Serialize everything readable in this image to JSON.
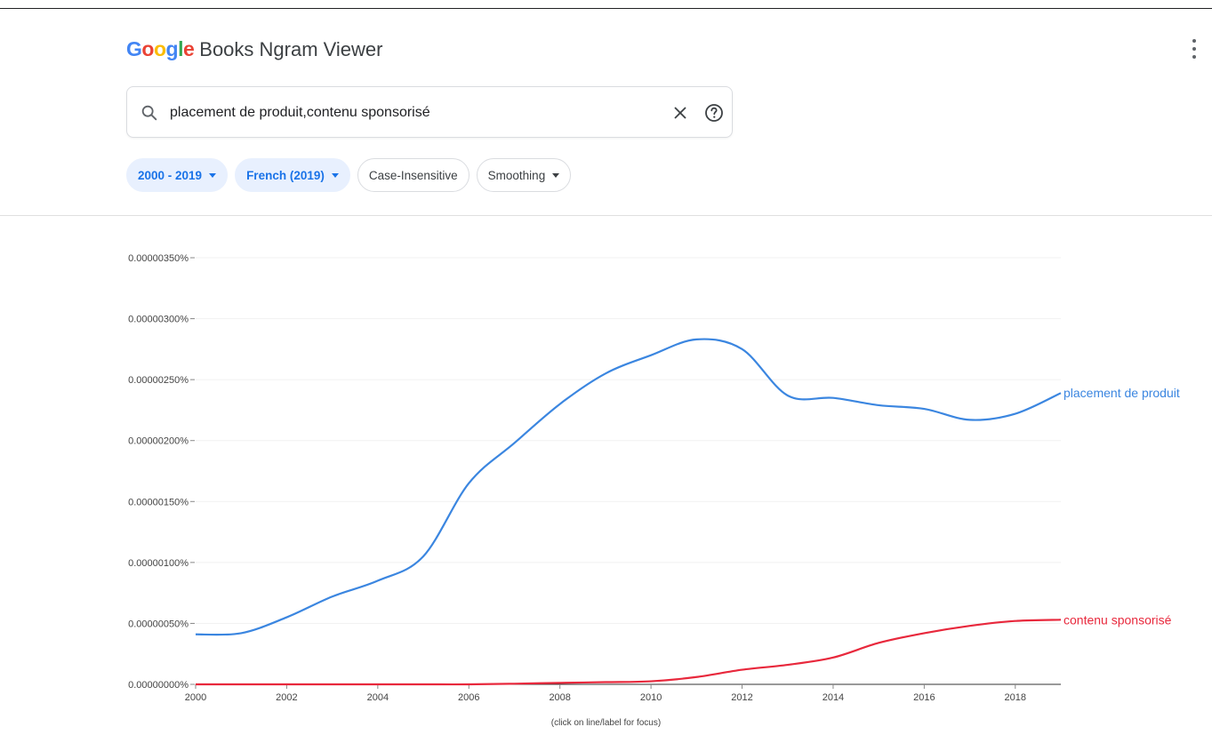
{
  "header": {
    "logo_letters": [
      "G",
      "o",
      "o",
      "g",
      "l",
      "e"
    ],
    "logo_colors": [
      "#4285F4",
      "#EA4335",
      "#FBBC05",
      "#4285F4",
      "#34A853",
      "#EA4335"
    ],
    "app_title": "Books Ngram Viewer"
  },
  "search": {
    "value": "placement de produit,contenu sponsorisé"
  },
  "chips": {
    "year_range": "2000 - 2019",
    "corpus": "French (2019)",
    "case": "Case-Insensitive",
    "smoothing": "Smoothing"
  },
  "colors": {
    "accent": "#1a73e8",
    "series_blue": "#3b86e0",
    "series_red": "#e8283c"
  },
  "icons": [
    "search-icon",
    "close-icon",
    "help-icon",
    "more-vert-icon",
    "caret-down-icon"
  ],
  "footnote": "(click on line/label for focus)",
  "chart_data": {
    "type": "line",
    "title": "",
    "xlabel": "",
    "ylabel": "",
    "xlim": [
      2000,
      2019
    ],
    "ylim": [
      0,
      3.5e-06
    ],
    "x_ticks": [
      "2000",
      "2002",
      "2004",
      "2006",
      "2008",
      "2010",
      "2012",
      "2014",
      "2016",
      "2018"
    ],
    "y_ticks": [
      "0.00000000%",
      "0.00000050%",
      "0.00000100%",
      "0.00000150%",
      "0.00000200%",
      "0.00000250%",
      "0.00000300%",
      "0.00000350%"
    ],
    "grid": true,
    "x": [
      2000,
      2001,
      2002,
      2003,
      2004,
      2005,
      2006,
      2007,
      2008,
      2009,
      2010,
      2011,
      2012,
      2013,
      2014,
      2015,
      2016,
      2017,
      2018,
      2019
    ],
    "series": [
      {
        "name": "placement de produit",
        "color": "#3b86e0",
        "values": [
          4.1e-07,
          4.2e-07,
          5.5e-07,
          7.2e-07,
          8.5e-07,
          1.05e-06,
          1.65e-06,
          1.98e-06,
          2.3e-06,
          2.55e-06,
          2.7e-06,
          2.83e-06,
          2.75e-06,
          2.37e-06,
          2.35e-06,
          2.29e-06,
          2.26e-06,
          2.17e-06,
          2.22e-06,
          2.39e-06
        ]
      },
      {
        "name": "contenu sponsorisé",
        "color": "#e8283c",
        "values": [
          0.0,
          0.0,
          0.0,
          0.0,
          0.0,
          0.0,
          0.0,
          5e-09,
          1.2e-08,
          1.8e-08,
          2.5e-08,
          6e-08,
          1.2e-07,
          1.6e-07,
          2.2e-07,
          3.4e-07,
          4.2e-07,
          4.8e-07,
          5.2e-07,
          5.3e-07
        ]
      }
    ]
  }
}
